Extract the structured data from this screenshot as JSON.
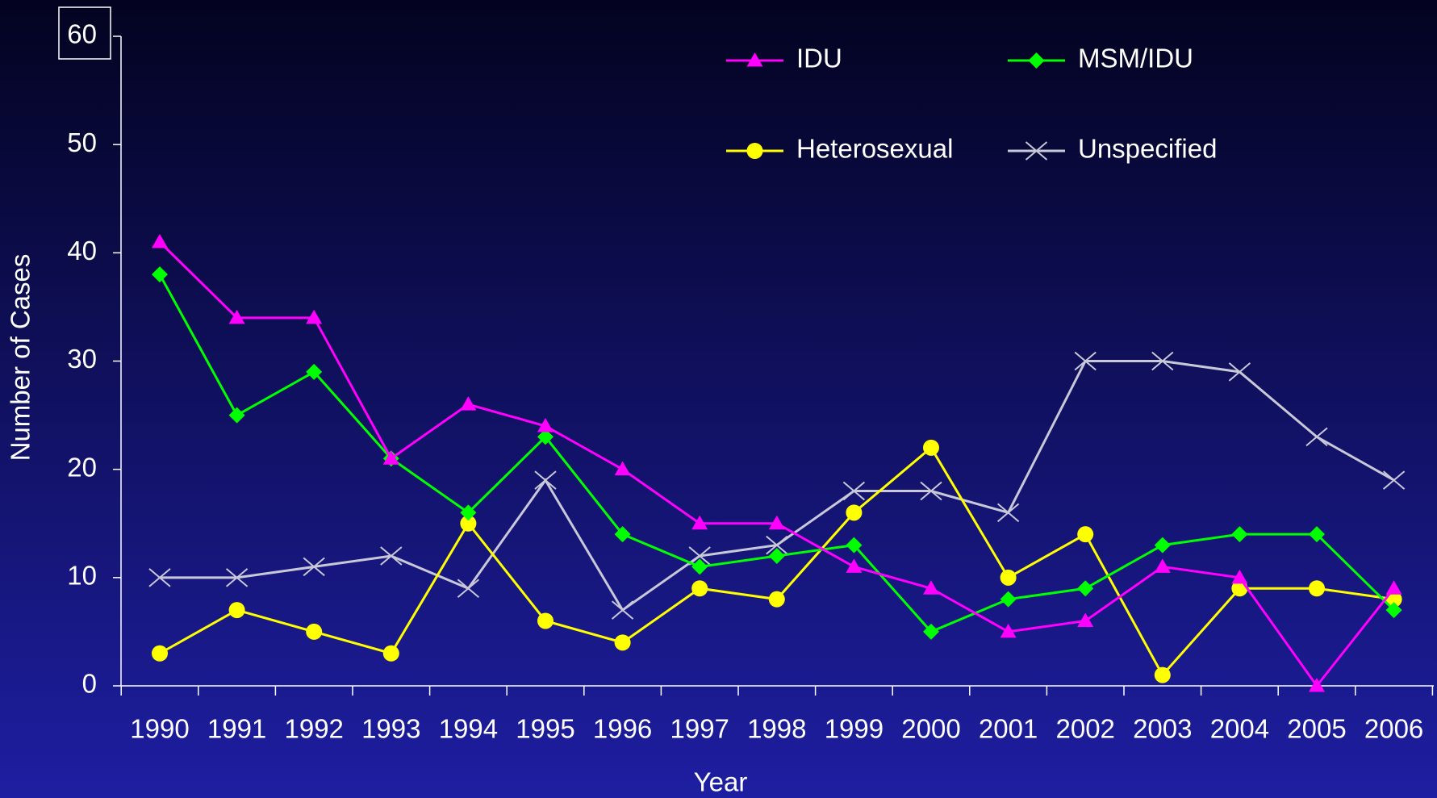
{
  "chart_data": {
    "type": "line",
    "xlabel": "Year",
    "ylabel": "Number of Cases",
    "categories": [
      "1990",
      "1991",
      "1992",
      "1993",
      "1994",
      "1995",
      "1996",
      "1997",
      "1998",
      "1999",
      "2000",
      "2001",
      "2002",
      "2003",
      "2004",
      "2005",
      "2006"
    ],
    "series": [
      {
        "name": "IDU",
        "color": "#ff00ff",
        "marker": "triangle",
        "values": [
          41,
          34,
          34,
          21,
          26,
          24,
          20,
          15,
          15,
          11,
          9,
          5,
          6,
          11,
          10,
          0,
          9
        ]
      },
      {
        "name": "MSM/IDU",
        "color": "#00ff00",
        "marker": "diamond",
        "values": [
          38,
          25,
          29,
          21,
          16,
          23,
          14,
          11,
          12,
          13,
          5,
          8,
          9,
          13,
          14,
          14,
          7
        ]
      },
      {
        "name": "Heterosexual",
        "color": "#ffff00",
        "marker": "circle",
        "values": [
          3,
          7,
          5,
          3,
          15,
          6,
          4,
          9,
          8,
          16,
          22,
          10,
          14,
          1,
          9,
          9,
          8
        ]
      },
      {
        "name": "Unspecified",
        "color": "#c8c8d8",
        "marker": "x",
        "values": [
          10,
          10,
          11,
          12,
          9,
          19,
          7,
          12,
          13,
          18,
          18,
          16,
          30,
          30,
          29,
          23,
          19
        ]
      }
    ],
    "ylim": [
      0,
      60
    ],
    "yticks": [
      0,
      10,
      20,
      30,
      40,
      50,
      60
    ],
    "grid": false
  }
}
